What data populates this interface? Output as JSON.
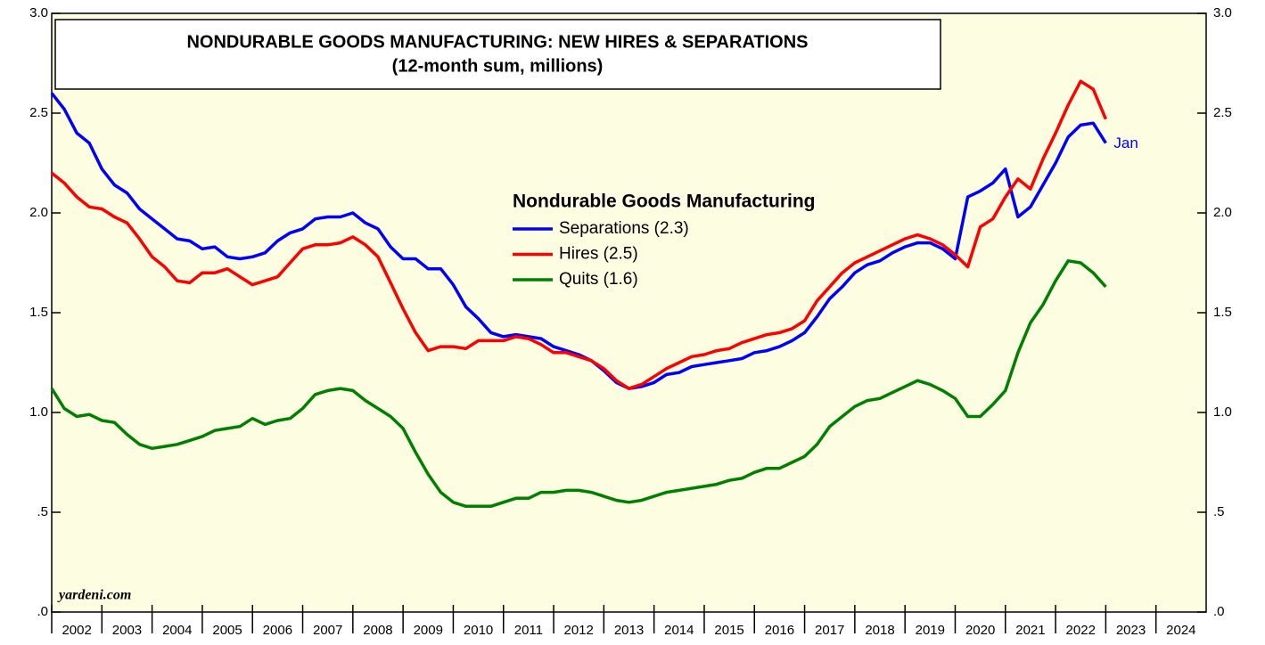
{
  "chart_data": {
    "type": "line",
    "title": "NONDURABLE GOODS MANUFACTURING: NEW HIRES & SEPARATIONS",
    "subtitle": "(12-month sum, millions)",
    "legend_title": "Nondurable Goods Manufacturing",
    "annotation": "Jan",
    "source": "yardeni.com",
    "x": [
      2002,
      2002.25,
      2002.5,
      2002.75,
      2003,
      2003.25,
      2003.5,
      2003.75,
      2004,
      2004.25,
      2004.5,
      2004.75,
      2005,
      2005.25,
      2005.5,
      2005.75,
      2006,
      2006.25,
      2006.5,
      2006.75,
      2007,
      2007.25,
      2007.5,
      2007.75,
      2008,
      2008.25,
      2008.5,
      2008.75,
      2009,
      2009.25,
      2009.5,
      2009.75,
      2010,
      2010.25,
      2010.5,
      2010.75,
      2011,
      2011.25,
      2011.5,
      2011.75,
      2012,
      2012.25,
      2012.5,
      2012.75,
      2013,
      2013.25,
      2013.5,
      2013.75,
      2014,
      2014.25,
      2014.5,
      2014.75,
      2015,
      2015.25,
      2015.5,
      2015.75,
      2016,
      2016.25,
      2016.5,
      2016.75,
      2017,
      2017.25,
      2017.5,
      2017.75,
      2018,
      2018.25,
      2018.5,
      2018.75,
      2019,
      2019.25,
      2019.5,
      2019.75,
      2020,
      2020.25,
      2020.5,
      2020.75,
      2021,
      2021.25,
      2021.5,
      2021.75,
      2022,
      2022.25,
      2022.5,
      2022.75,
      2023
    ],
    "series": [
      {
        "name": "Separations (2.3)",
        "color": "#0000ff",
        "values": [
          2.6,
          2.52,
          2.4,
          2.35,
          2.22,
          2.14,
          2.1,
          2.02,
          1.97,
          1.92,
          1.87,
          1.86,
          1.82,
          1.83,
          1.78,
          1.77,
          1.78,
          1.8,
          1.86,
          1.9,
          1.92,
          1.97,
          1.98,
          1.98,
          2.0,
          1.95,
          1.92,
          1.83,
          1.77,
          1.77,
          1.72,
          1.72,
          1.64,
          1.53,
          1.47,
          1.4,
          1.38,
          1.39,
          1.38,
          1.37,
          1.33,
          1.31,
          1.29,
          1.26,
          1.21,
          1.15,
          1.12,
          1.13,
          1.15,
          1.19,
          1.2,
          1.23,
          1.24,
          1.25,
          1.26,
          1.27,
          1.3,
          1.31,
          1.33,
          1.36,
          1.4,
          1.48,
          1.57,
          1.63,
          1.7,
          1.74,
          1.76,
          1.8,
          1.83,
          1.85,
          1.85,
          1.82,
          1.77,
          2.08,
          2.11,
          2.15,
          2.22,
          1.98,
          2.03,
          2.14,
          2.25,
          2.38,
          2.44,
          2.45,
          2.35
        ]
      },
      {
        "name": "Hires (2.5)",
        "color": "#ff0000",
        "values": [
          2.2,
          2.15,
          2.08,
          2.03,
          2.02,
          1.98,
          1.95,
          1.87,
          1.78,
          1.73,
          1.66,
          1.65,
          1.7,
          1.7,
          1.72,
          1.68,
          1.64,
          1.66,
          1.68,
          1.75,
          1.82,
          1.84,
          1.84,
          1.85,
          1.88,
          1.84,
          1.78,
          1.65,
          1.52,
          1.4,
          1.31,
          1.33,
          1.33,
          1.32,
          1.36,
          1.36,
          1.36,
          1.38,
          1.37,
          1.34,
          1.3,
          1.3,
          1.28,
          1.26,
          1.22,
          1.16,
          1.12,
          1.14,
          1.18,
          1.22,
          1.25,
          1.28,
          1.29,
          1.31,
          1.32,
          1.35,
          1.37,
          1.39,
          1.4,
          1.42,
          1.46,
          1.56,
          1.63,
          1.7,
          1.75,
          1.78,
          1.81,
          1.84,
          1.87,
          1.89,
          1.87,
          1.84,
          1.79,
          1.73,
          1.93,
          1.97,
          2.08,
          2.17,
          2.12,
          2.27,
          2.4,
          2.54,
          2.66,
          2.62,
          2.47
        ]
      },
      {
        "name": "Quits (1.6)",
        "color": "#008000",
        "values": [
          1.12,
          1.02,
          0.98,
          0.99,
          0.96,
          0.95,
          0.89,
          0.84,
          0.82,
          0.83,
          0.84,
          0.86,
          0.88,
          0.91,
          0.92,
          0.93,
          0.97,
          0.94,
          0.96,
          0.97,
          1.02,
          1.09,
          1.11,
          1.12,
          1.11,
          1.06,
          1.02,
          0.98,
          0.92,
          0.8,
          0.69,
          0.6,
          0.55,
          0.53,
          0.53,
          0.53,
          0.55,
          0.57,
          0.57,
          0.6,
          0.6,
          0.61,
          0.61,
          0.6,
          0.58,
          0.56,
          0.55,
          0.56,
          0.58,
          0.6,
          0.61,
          0.62,
          0.63,
          0.64,
          0.66,
          0.67,
          0.7,
          0.72,
          0.72,
          0.75,
          0.78,
          0.84,
          0.93,
          0.98,
          1.03,
          1.06,
          1.07,
          1.1,
          1.13,
          1.16,
          1.14,
          1.11,
          1.07,
          0.98,
          0.98,
          1.04,
          1.11,
          1.3,
          1.45,
          1.54,
          1.66,
          1.76,
          1.75,
          1.7,
          1.63
        ]
      }
    ],
    "xlim": [
      2002,
      2025
    ],
    "xticks": [
      2002,
      2003,
      2004,
      2005,
      2006,
      2007,
      2008,
      2009,
      2010,
      2011,
      2012,
      2013,
      2014,
      2015,
      2016,
      2017,
      2018,
      2019,
      2020,
      2021,
      2022,
      2023,
      2024
    ],
    "ylim": [
      0,
      3
    ],
    "yticks": [
      {
        "value": 0,
        "label": ".0"
      },
      {
        "value": 0.5,
        "label": ".5"
      },
      {
        "value": 1,
        "label": "1.0"
      },
      {
        "value": 1.5,
        "label": "1.5"
      },
      {
        "value": 2,
        "label": "2.0"
      },
      {
        "value": 2.5,
        "label": "2.5"
      },
      {
        "value": 3,
        "label": "3.0"
      }
    ],
    "grid": false,
    "background": "#fdfde1"
  }
}
